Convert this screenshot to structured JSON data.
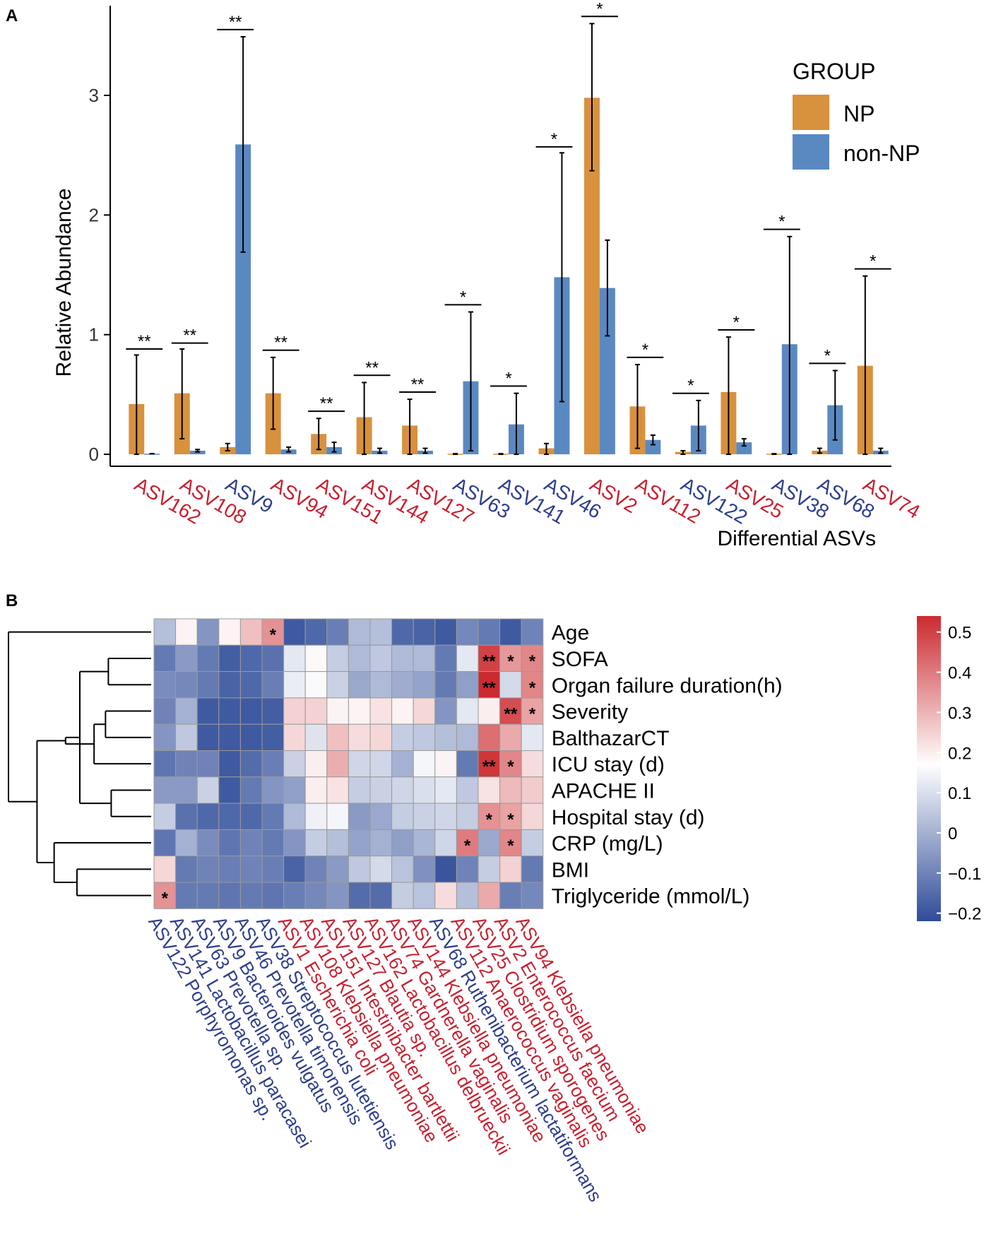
{
  "chart_data": [
    {
      "panel": "A",
      "type": "bar",
      "ylabel": "Relative Abundance",
      "xlabel": "Differential ASVs",
      "ylim": [
        -0.1,
        3.75
      ],
      "yticks": [
        0,
        1,
        2,
        3
      ],
      "legend": {
        "title": "GROUP",
        "position": "top-right",
        "entries": [
          {
            "name": "NP",
            "color": "#D8913D"
          },
          {
            "name": "non-NP",
            "color": "#5A89C2"
          }
        ]
      },
      "categories": [
        "ASV162",
        "ASV108",
        "ASV9",
        "ASV94",
        "ASV151",
        "ASV144",
        "ASV127",
        "ASV63",
        "ASV141",
        "ASV46",
        "ASV2",
        "ASV112",
        "ASV122",
        "ASV25",
        "ASV38",
        "ASV68",
        "ASV74"
      ],
      "label_colors": [
        "#C8202F",
        "#C8202F",
        "#2D3E8C",
        "#C8202F",
        "#C8202F",
        "#C8202F",
        "#C8202F",
        "#2D3E8C",
        "#2D3E8C",
        "#2D3E8C",
        "#C8202F",
        "#C8202F",
        "#2D3E8C",
        "#C8202F",
        "#2D3E8C",
        "#2D3E8C",
        "#C8202F"
      ],
      "series": [
        {
          "name": "NP",
          "color": "#D8913D",
          "values": [
            0.42,
            0.51,
            0.06,
            0.51,
            0.17,
            0.31,
            0.24,
            0.005,
            0.005,
            0.05,
            2.98,
            0.4,
            0.02,
            0.52,
            0.005,
            0.03,
            0.74
          ],
          "err_low": [
            0.0,
            0.13,
            0.03,
            0.21,
            0.04,
            0.0,
            0.0,
            0.0,
            0.0,
            0.0,
            2.37,
            0.05,
            0.0,
            0.0,
            0.0,
            0.01,
            0.0
          ],
          "err_high": [
            0.83,
            0.88,
            0.09,
            0.81,
            0.3,
            0.6,
            0.46,
            0.005,
            0.005,
            0.09,
            3.6,
            0.75,
            0.03,
            0.98,
            0.005,
            0.05,
            1.49
          ]
        },
        {
          "name": "non-NP",
          "color": "#5A89C2",
          "values": [
            0.005,
            0.03,
            2.59,
            0.04,
            0.06,
            0.03,
            0.03,
            0.61,
            0.25,
            1.48,
            1.39,
            0.12,
            0.24,
            0.1,
            0.92,
            0.41,
            0.03
          ],
          "err_low": [
            0.005,
            0.02,
            1.69,
            0.02,
            0.02,
            0.01,
            0.01,
            0.03,
            0.0,
            0.44,
            0.99,
            0.08,
            0.03,
            0.07,
            0.0,
            0.12,
            0.01
          ],
          "err_high": [
            0.005,
            0.04,
            3.49,
            0.06,
            0.1,
            0.05,
            0.05,
            1.19,
            0.51,
            2.52,
            1.79,
            0.16,
            0.45,
            0.13,
            1.82,
            0.7,
            0.05
          ]
        }
      ],
      "significance": [
        "**",
        "**",
        "**",
        "**",
        "**",
        "**",
        "**",
        "*",
        "*",
        "*",
        "*",
        "*",
        "*",
        "*",
        "*",
        "*",
        "*"
      ],
      "significance_height": [
        0.88,
        0.93,
        3.55,
        0.87,
        0.36,
        0.66,
        0.52,
        1.25,
        0.57,
        2.57,
        3.66,
        0.81,
        0.51,
        1.04,
        1.88,
        0.76,
        1.55
      ]
    },
    {
      "panel": "B",
      "type": "heatmap",
      "rows": [
        "Age",
        "SOFA",
        "Organ failure duration(h)",
        "Severity",
        "BalthazarCT",
        "ICU stay (d)",
        "APACHE II",
        "Hospital stay (d)",
        "CRP (mg/L)",
        "BMI",
        "Triglyceride (mmol/L)"
      ],
      "columns": [
        "ASV122 Porphyromonas sp.",
        "ASV141 Lactobacillus paracasei",
        "ASV63 Prevotella sp.",
        "ASV9 Bacteroides vulgatus",
        "ASV46 Prevotella timonensis",
        "ASV38 Streptococcus lutetiensis",
        "ASV1 Escherichia coli",
        "ASV108 Klebsiella pneumoniae",
        "ASV151 Intestinibacter bartlettii",
        "ASV127 Blautia sp.",
        "ASV162 Lactobacillus delbrueckii",
        "ASV74 Gardnerella vaginalis",
        "ASV144 Klebsiella pneumoniae",
        "ASV68 Ruthenibacterium lactatiformans",
        "ASV112 Anaerococcus vaginalis",
        "ASV25 Clostridium sporogenes",
        "ASV2 Enterococcus faecium",
        "ASV94 Klebsiella pneumoniae"
      ],
      "column_colors": [
        "#2D3E8C",
        "#2D3E8C",
        "#2D3E8C",
        "#2D3E8C",
        "#2D3E8C",
        "#2D3E8C",
        "#C8202F",
        "#C8202F",
        "#C8202F",
        "#C8202F",
        "#C8202F",
        "#C8202F",
        "#C8202F",
        "#2D3E8C",
        "#C8202F",
        "#C8202F",
        "#C8202F",
        "#C8202F"
      ],
      "values": [
        [
          0.03,
          0.19,
          -0.06,
          0.19,
          0.28,
          0.36,
          -0.19,
          -0.16,
          -0.11,
          0.02,
          0.03,
          -0.16,
          -0.17,
          -0.19,
          -0.09,
          -0.12,
          -0.19,
          -0.1
        ],
        [
          -0.12,
          -0.05,
          -0.12,
          -0.18,
          -0.16,
          -0.14,
          0.12,
          0.18,
          0.06,
          0.02,
          0.05,
          0.02,
          0.02,
          -0.12,
          0.12,
          0.5,
          0.35,
          0.38
        ],
        [
          -0.08,
          -0.09,
          -0.12,
          -0.17,
          -0.16,
          -0.11,
          0.13,
          0.16,
          0.07,
          -0.02,
          0.02,
          -0.01,
          -0.03,
          -0.12,
          -0.04,
          0.55,
          0.09,
          0.38
        ],
        [
          -0.1,
          0.0,
          -0.19,
          -0.19,
          -0.19,
          -0.18,
          0.25,
          0.25,
          0.19,
          0.19,
          0.22,
          0.19,
          0.24,
          -0.06,
          0.12,
          0.2,
          0.48,
          0.33
        ],
        [
          -0.06,
          0.05,
          -0.19,
          -0.19,
          -0.19,
          -0.18,
          0.24,
          0.11,
          0.28,
          0.23,
          0.24,
          0.06,
          0.05,
          0.03,
          0.02,
          0.42,
          0.32,
          0.12
        ],
        [
          -0.13,
          -0.1,
          -0.1,
          -0.19,
          -0.15,
          -0.11,
          0.07,
          0.2,
          0.31,
          0.08,
          0.08,
          0.0,
          0.15,
          0.19,
          -0.12,
          0.52,
          0.38,
          0.23
        ],
        [
          -0.05,
          -0.05,
          0.07,
          -0.19,
          -0.12,
          -0.06,
          -0.04,
          0.2,
          0.22,
          0.06,
          0.07,
          0.08,
          0.1,
          0.12,
          0.05,
          0.22,
          0.29,
          0.26
        ],
        [
          0.06,
          -0.14,
          -0.16,
          -0.16,
          -0.16,
          -0.12,
          0.02,
          0.14,
          0.15,
          -0.05,
          -0.02,
          0.06,
          0.07,
          0.08,
          0.06,
          0.36,
          0.33,
          0.24
        ],
        [
          -0.13,
          0.0,
          -0.08,
          -0.13,
          -0.1,
          -0.12,
          -0.06,
          0.06,
          0.03,
          -0.03,
          0.0,
          -0.04,
          0.01,
          0.08,
          0.4,
          -0.02,
          0.38,
          0.06
        ],
        [
          0.24,
          -0.12,
          -0.1,
          -0.11,
          -0.1,
          -0.11,
          -0.17,
          -0.1,
          -0.05,
          0.05,
          0.09,
          0.04,
          -0.07,
          -0.2,
          -0.1,
          0.06,
          0.25,
          -0.12
        ],
        [
          0.36,
          -0.12,
          -0.12,
          -0.13,
          -0.12,
          -0.13,
          -0.11,
          -0.09,
          -0.06,
          -0.15,
          -0.15,
          0.06,
          0.04,
          0.23,
          0.03,
          0.32,
          -0.11,
          -0.09
        ]
      ],
      "stars": [
        [
          "",
          "",
          "",
          "",
          "",
          "*",
          "",
          "",
          "",
          "",
          "",
          "",
          "",
          "",
          "",
          "",
          "",
          ""
        ],
        [
          "",
          "",
          "",
          "",
          "",
          "",
          "",
          "",
          "",
          "",
          "",
          "",
          "",
          "",
          "",
          "**",
          "*",
          "*"
        ],
        [
          "",
          "",
          "",
          "",
          "",
          "",
          "",
          "",
          "",
          "",
          "",
          "",
          "",
          "",
          "",
          "**",
          "",
          "*"
        ],
        [
          "",
          "",
          "",
          "",
          "",
          "",
          "",
          "",
          "",
          "",
          "",
          "",
          "",
          "",
          "",
          "",
          "**",
          "*"
        ],
        [
          "",
          "",
          "",
          "",
          "",
          "",
          "",
          "",
          "",
          "",
          "",
          "",
          "",
          "",
          "",
          "",
          "",
          ""
        ],
        [
          "",
          "",
          "",
          "",
          "",
          "",
          "",
          "",
          "",
          "",
          "",
          "",
          "",
          "",
          "",
          "**",
          "*",
          ""
        ],
        [
          "",
          "",
          "",
          "",
          "",
          "",
          "",
          "",
          "",
          "",
          "",
          "",
          "",
          "",
          "",
          "",
          "",
          ""
        ],
        [
          "",
          "",
          "",
          "",
          "",
          "",
          "",
          "",
          "",
          "",
          "",
          "",
          "",
          "",
          "",
          "*",
          "*",
          ""
        ],
        [
          "",
          "",
          "",
          "",
          "",
          "",
          "",
          "",
          "",
          "",
          "",
          "",
          "",
          "",
          "*",
          "",
          "*",
          ""
        ],
        [
          "",
          "",
          "",
          "",
          "",
          "",
          "",
          "",
          "",
          "",
          "",
          "",
          "",
          "",
          "",
          "",
          "",
          ""
        ],
        [
          "*",
          "",
          "",
          "",
          "",
          "",
          "",
          "",
          "",
          "",
          "",
          "",
          "",
          "",
          "",
          "",
          "",
          ""
        ]
      ],
      "dendrogram": {
        "leaf_order": [
          "Age",
          "SOFA",
          "Organ failure duration(h)",
          "Severity",
          "BalthazarCT",
          "ICU stay (d)",
          "APACHE II",
          "Hospital stay (d)",
          "CRP (mg/L)",
          "BMI",
          "Triglyceride (mmol/L)"
        ],
        "merges": [
          {
            "left": "r1",
            "right": "r2",
            "height": 0.3
          },
          {
            "left": "r3",
            "right": "r4",
            "height": 0.32
          },
          {
            "left": "r6",
            "right": "r7",
            "height": 0.28
          },
          {
            "left": "r5",
            "right": "m2",
            "height": 0.4
          },
          {
            "left": "m1",
            "right": "m3",
            "height": 0.5
          },
          {
            "left": "m5",
            "right": "m4",
            "height": 0.6
          },
          {
            "left": "r9",
            "right": "r10",
            "height": 0.52
          },
          {
            "left": "r8",
            "right": "m7",
            "height": 0.68
          },
          {
            "left": "m6",
            "right": "m8",
            "height": 0.8
          },
          {
            "left": "r0",
            "right": "m9",
            "height": 1.0
          }
        ]
      },
      "colorbar": {
        "min": -0.22,
        "max": 0.54,
        "ticks": [
          0.5,
          0.4,
          0.3,
          0.2,
          0.1,
          0,
          -0.1,
          -0.2
        ],
        "tick_labels": [
          "0.5",
          "0.4",
          "0.3",
          "0.2",
          "0.1",
          "0",
          "−0.1",
          "−0.2"
        ],
        "low_color": "#2F4C99",
        "mid_color": "#FFFFFF",
        "mid_value": 0.17,
        "high_color": "#CB2A2F"
      }
    }
  ],
  "panel_labels": {
    "a": "A",
    "b": "B"
  }
}
